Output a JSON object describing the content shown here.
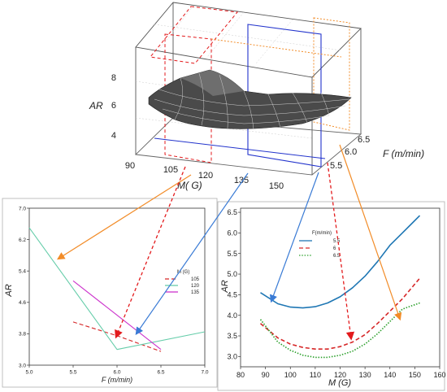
{
  "chart_data": [
    {
      "type": "surface",
      "zlabel": "AR",
      "xlabel": "M( G)",
      "ylabel": "F (m/min)",
      "z_ticks": [
        "8",
        "6",
        "4"
      ],
      "x_ticks": [
        "90",
        "105",
        "120",
        "135",
        "150"
      ],
      "y_ticks": [
        "5.5",
        "6.0",
        "6.5"
      ]
    },
    {
      "type": "line",
      "xlabel": "F (m/min)",
      "ylabel": "AR",
      "xlim": [
        5.0,
        7.0
      ],
      "ylim": [
        3.0,
        7.0
      ],
      "x_ticks": [
        "5.0",
        "5.5",
        "6.0",
        "6.5",
        "7.0"
      ],
      "y_ticks": [
        "3.0",
        "3.8",
        "4.6",
        "5.4",
        "6.2",
        "7.0"
      ],
      "legend_title": "M (G)",
      "legend_position": "center-right",
      "series": [
        {
          "name": "105",
          "color": "#d62728",
          "dash": "dashed",
          "x": [
            5.5,
            6.0,
            6.5
          ],
          "y": [
            4.1,
            3.75,
            3.35
          ]
        },
        {
          "name": "120",
          "color": "#66cdaa",
          "dash": "solid",
          "x": [
            5.0,
            6.0,
            7.0
          ],
          "y": [
            6.5,
            3.4,
            3.85
          ]
        },
        {
          "name": "135",
          "color": "#cc33cc",
          "dash": "solid",
          "x": [
            5.5,
            6.5
          ],
          "y": [
            5.15,
            3.4
          ]
        }
      ]
    },
    {
      "type": "line",
      "xlabel": "M (G)",
      "ylabel": "AR",
      "xlim": [
        80,
        160
      ],
      "ylim": [
        2.75,
        6.6
      ],
      "x_ticks": [
        "80",
        "90",
        "100",
        "110",
        "120",
        "130",
        "140",
        "150",
        "160"
      ],
      "y_ticks": [
        "3.0",
        "3.5",
        "4.0",
        "4.5",
        "5.0",
        "5.5",
        "6.0",
        "6.5"
      ],
      "legend_title": "F(m/min)",
      "legend_position": "top-left",
      "series": [
        {
          "name": "5.5",
          "color": "#1f77b4",
          "dash": "solid",
          "x": [
            88,
            95,
            100,
            105,
            110,
            115,
            120,
            125,
            130,
            135,
            140,
            145,
            152
          ],
          "y": [
            4.55,
            4.28,
            4.2,
            4.18,
            4.21,
            4.3,
            4.45,
            4.67,
            4.95,
            5.3,
            5.7,
            6.0,
            6.42
          ]
        },
        {
          "name": "6",
          "color": "#d62728",
          "dash": "dashed",
          "x": [
            88,
            95,
            100,
            105,
            110,
            115,
            120,
            125,
            130,
            135,
            140,
            145,
            152
          ],
          "y": [
            3.8,
            3.45,
            3.3,
            3.22,
            3.18,
            3.18,
            3.24,
            3.35,
            3.53,
            3.8,
            4.1,
            4.4,
            4.9
          ]
        },
        {
          "name": "6.5",
          "color": "#2ca02c",
          "dash": "dotted",
          "x": [
            88,
            95,
            100,
            105,
            110,
            115,
            120,
            125,
            130,
            135,
            140,
            145,
            152
          ],
          "y": [
            3.9,
            3.35,
            3.15,
            3.03,
            2.98,
            2.98,
            3.03,
            3.13,
            3.3,
            3.55,
            3.85,
            4.15,
            4.3
          ]
        }
      ]
    }
  ]
}
